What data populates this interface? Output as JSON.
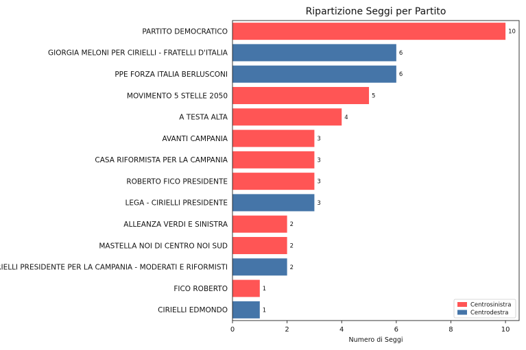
{
  "chart_data": {
    "type": "bar",
    "orientation": "horizontal",
    "title": "Ripartizione Seggi per Partito",
    "xlabel": "Numero di Seggi",
    "ylabel": "",
    "xlim": [
      0,
      10.5
    ],
    "xticks": [
      0,
      2,
      4,
      6,
      8,
      10
    ],
    "grid": false,
    "legend_position": "bottom-right",
    "groups": [
      {
        "name": "Centrosinistra",
        "color": "#ff5555"
      },
      {
        "name": "Centrodestra",
        "color": "#4575a8"
      }
    ],
    "bars": [
      {
        "label": "PARTITO DEMOCRATICO",
        "value": 10,
        "group": "Centrosinistra"
      },
      {
        "label": "GIORGIA MELONI PER CIRIELLI - FRATELLI D'ITALIA",
        "value": 6,
        "group": "Centrodestra"
      },
      {
        "label": "PPE FORZA ITALIA BERLUSCONI",
        "value": 6,
        "group": "Centrodestra"
      },
      {
        "label": "MOVIMENTO 5 STELLE 2050",
        "value": 5,
        "group": "Centrosinistra"
      },
      {
        "label": "A TESTA ALTA",
        "value": 4,
        "group": "Centrosinistra"
      },
      {
        "label": "AVANTI CAMPANIA",
        "value": 3,
        "group": "Centrosinistra"
      },
      {
        "label": "CASA RIFORMISTA PER LA CAMPANIA",
        "value": 3,
        "group": "Centrosinistra"
      },
      {
        "label": "ROBERTO FICO PRESIDENTE",
        "value": 3,
        "group": "Centrosinistra"
      },
      {
        "label": "LEGA - CIRIELLI PRESIDENTE",
        "value": 3,
        "group": "Centrodestra"
      },
      {
        "label": "ALLEANZA VERDI E SINISTRA",
        "value": 2,
        "group": "Centrosinistra"
      },
      {
        "label": "MASTELLA NOI DI CENTRO NOI SUD",
        "value": 2,
        "group": "Centrosinistra"
      },
      {
        "label": "CIRIELLI PRESIDENTE PER LA CAMPANIA - MODERATI E RIFORMISTI",
        "value": 2,
        "group": "Centrodestra"
      },
      {
        "label": "FICO ROBERTO",
        "value": 1,
        "group": "Centrosinistra"
      },
      {
        "label": "CIRIELLI EDMONDO",
        "value": 1,
        "group": "Centrodestra"
      }
    ]
  }
}
